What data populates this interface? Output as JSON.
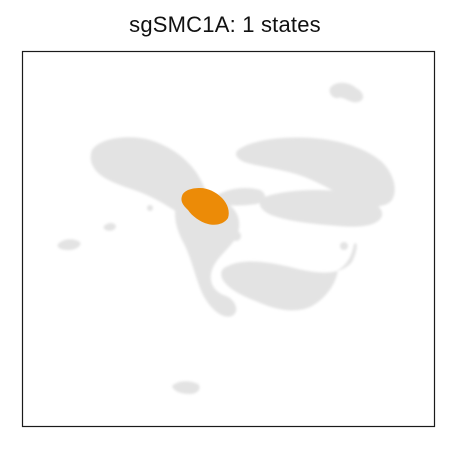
{
  "chart_data": {
    "type": "scatter",
    "title": "sgSMC1A: 1 states",
    "xlabel": "",
    "ylabel": "",
    "grid": false,
    "legend": "none",
    "axes_ticks": false,
    "background_points_color": "#e3e3e3",
    "highlight_color": "#ec8b07",
    "frame_color": "#1a1a1a",
    "series": [
      {
        "role": "background",
        "point_groups": [
          {
            "x": [
              -4.5,
              -4.0,
              -3.5,
              -3.0,
              -2.5,
              -2.0,
              -1.5,
              -1.0,
              -0.5,
              -0.2
            ],
            "y": [
              3.2,
              3.5,
              3.6,
              3.4,
              3.0,
              2.6,
              2.2,
              1.8,
              1.4,
              1.2
            ]
          }
        ]
      },
      {
        "role": "highlight",
        "point_groups": [
          {
            "x": [
              -1.2,
              -0.8,
              -0.4,
              -0.1,
              0.1
            ],
            "y": [
              0.4,
              0.6,
              0.3,
              -0.1,
              -0.4
            ]
          }
        ]
      }
    ]
  },
  "figure": {
    "title": "sgSMC1A: 1 states"
  }
}
